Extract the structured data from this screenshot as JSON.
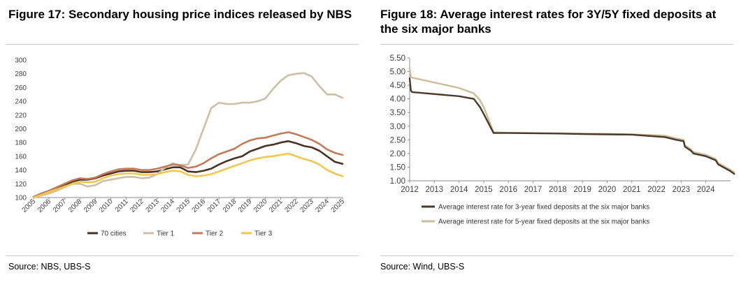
{
  "left": {
    "title": "Figure 17: Secondary housing price indices released by NBS",
    "source": "Source: NBS, UBS-S"
  },
  "right": {
    "title": "Figure 18: Average interest rates for 3Y/5Y fixed deposits at the six major banks",
    "source": "Source: Wind, UBS-S"
  },
  "colors": {
    "cities70": "#4a3222",
    "tier1": "#cdbfa5",
    "tier2": "#c47a58",
    "tier3": "#f0c84a",
    "dep3y": "#4a3a2a",
    "dep5y": "#cdbb9a",
    "axis": "#8c8c8c",
    "rule": "#c8c8c8"
  },
  "chart_data": [
    {
      "type": "line",
      "title": "Figure 17: Secondary housing price indices released by NBS",
      "xlabel": "",
      "ylabel": "",
      "xlim": [
        2005,
        2025
      ],
      "ylim": [
        100,
        300
      ],
      "yticks": [
        "100",
        "120",
        "140",
        "160",
        "180",
        "200",
        "220",
        "240",
        "260",
        "280",
        "300"
      ],
      "xticks": [
        "2005",
        "2006",
        "2007",
        "2008",
        "2009",
        "2010",
        "2011",
        "2012",
        "2013",
        "2014",
        "2015",
        "2016",
        "2017",
        "2018",
        "2019",
        "2020",
        "2021",
        "2022",
        "2023",
        "2024",
        "2025"
      ],
      "legend_position": "bottom",
      "series": [
        {
          "name": "70 cities",
          "color_key": "cities70",
          "x": [
            2005.0,
            2005.5,
            2006.0,
            2006.5,
            2007.0,
            2007.5,
            2008.0,
            2008.5,
            2009.0,
            2009.5,
            2010.0,
            2010.5,
            2011.0,
            2011.5,
            2012.0,
            2012.5,
            2013.0,
            2013.5,
            2014.0,
            2014.5,
            2015.0,
            2015.5,
            2016.0,
            2016.5,
            2017.0,
            2017.5,
            2018.0,
            2018.5,
            2019.0,
            2019.5,
            2020.0,
            2020.5,
            2021.0,
            2021.5,
            2022.0,
            2022.5,
            2023.0,
            2023.5,
            2024.0,
            2024.5,
            2025.0
          ],
          "values": [
            101,
            105,
            109,
            113,
            118,
            123,
            126,
            126,
            128,
            132,
            135,
            138,
            139,
            139,
            137,
            137,
            138,
            141,
            144,
            144,
            138,
            137,
            139,
            142,
            148,
            153,
            157,
            160,
            167,
            171,
            175,
            177,
            180,
            182,
            179,
            175,
            173,
            168,
            160,
            152,
            149
          ]
        },
        {
          "name": "Tier 1",
          "color_key": "tier1",
          "x": [
            2005.0,
            2005.5,
            2006.0,
            2006.5,
            2007.0,
            2007.5,
            2008.0,
            2008.5,
            2009.0,
            2009.5,
            2010.0,
            2010.5,
            2011.0,
            2011.5,
            2012.0,
            2012.5,
            2013.0,
            2013.5,
            2014.0,
            2014.5,
            2015.0,
            2015.5,
            2016.0,
            2016.5,
            2017.0,
            2017.5,
            2018.0,
            2018.5,
            2019.0,
            2019.5,
            2020.0,
            2020.5,
            2021.0,
            2021.5,
            2022.0,
            2022.5,
            2023.0,
            2023.5,
            2024.0,
            2024.5,
            2025.0
          ],
          "values": [
            100,
            103,
            106,
            110,
            115,
            120,
            120,
            116,
            118,
            124,
            126,
            128,
            130,
            130,
            128,
            129,
            134,
            143,
            150,
            147,
            148,
            170,
            200,
            230,
            238,
            236,
            236,
            238,
            238,
            240,
            244,
            258,
            270,
            278,
            280,
            281,
            276,
            262,
            250,
            250,
            245
          ]
        },
        {
          "name": "Tier 2",
          "color_key": "tier2",
          "x": [
            2005.0,
            2005.5,
            2006.0,
            2006.5,
            2007.0,
            2007.5,
            2008.0,
            2008.5,
            2009.0,
            2009.5,
            2010.0,
            2010.5,
            2011.0,
            2011.5,
            2012.0,
            2012.5,
            2013.0,
            2013.5,
            2014.0,
            2014.5,
            2015.0,
            2015.5,
            2016.0,
            2016.5,
            2017.0,
            2017.5,
            2018.0,
            2018.5,
            2019.0,
            2019.5,
            2020.0,
            2020.5,
            2021.0,
            2021.5,
            2022.0,
            2022.5,
            2023.0,
            2023.5,
            2024.0,
            2024.5,
            2025.0
          ],
          "values": [
            101,
            106,
            110,
            115,
            120,
            125,
            128,
            127,
            129,
            134,
            138,
            141,
            142,
            142,
            140,
            140,
            142,
            145,
            148,
            147,
            143,
            145,
            150,
            157,
            163,
            167,
            171,
            178,
            183,
            186,
            187,
            190,
            193,
            195,
            192,
            188,
            184,
            178,
            170,
            165,
            162
          ]
        },
        {
          "name": "Tier 3",
          "color_key": "tier3",
          "x": [
            2005.0,
            2005.5,
            2006.0,
            2006.5,
            2007.0,
            2007.5,
            2008.0,
            2008.5,
            2009.0,
            2009.5,
            2010.0,
            2010.5,
            2011.0,
            2011.5,
            2012.0,
            2012.5,
            2013.0,
            2013.5,
            2014.0,
            2014.5,
            2015.0,
            2015.5,
            2016.0,
            2016.5,
            2017.0,
            2017.5,
            2018.0,
            2018.5,
            2019.0,
            2019.5,
            2020.0,
            2020.5,
            2021.0,
            2021.5,
            2022.0,
            2022.5,
            2023.0,
            2023.5,
            2024.0,
            2024.5,
            2025.0
          ],
          "values": [
            100,
            104,
            108,
            112,
            116,
            120,
            123,
            122,
            123,
            128,
            132,
            134,
            135,
            135,
            133,
            133,
            134,
            137,
            139,
            138,
            133,
            131,
            132,
            134,
            138,
            142,
            146,
            150,
            154,
            157,
            159,
            160,
            162,
            164,
            160,
            156,
            153,
            148,
            140,
            135,
            131
          ]
        }
      ]
    },
    {
      "type": "line",
      "title": "Figure 18: Average interest rates for 3Y/5Y fixed deposits at the six major banks",
      "xlabel": "",
      "ylabel": "",
      "xlim": [
        2012,
        2025
      ],
      "ylim": [
        1.0,
        5.5
      ],
      "yticks": [
        "1.00",
        "1.50",
        "2.00",
        "2.50",
        "3.00",
        "3.50",
        "4.00",
        "4.50",
        "5.00",
        "5.50"
      ],
      "xticks": [
        "2012",
        "2013",
        "2014",
        "2015",
        "2016",
        "2017",
        "2018",
        "2019",
        "2020",
        "2021",
        "2022",
        "2023",
        "2024"
      ],
      "legend_position": "bottom",
      "series": [
        {
          "name": "Average interest rate for 3-year fixed deposits at the six major banks",
          "color_key": "dep3y",
          "x": [
            2012.0,
            2012.05,
            2012.1,
            2014.0,
            2014.6,
            2014.85,
            2015.0,
            2015.4,
            2016.0,
            2017.0,
            2018.0,
            2019.0,
            2020.0,
            2021.0,
            2022.0,
            2022.35,
            2022.8,
            2023.1,
            2023.15,
            2023.4,
            2023.5,
            2024.0,
            2024.4,
            2024.5,
            2024.7,
            2025.0,
            2025.15
          ],
          "values": [
            4.75,
            4.3,
            4.25,
            4.1,
            4.0,
            3.7,
            3.45,
            2.75,
            2.75,
            2.74,
            2.73,
            2.71,
            2.7,
            2.69,
            2.62,
            2.6,
            2.5,
            2.45,
            2.25,
            2.1,
            2.0,
            1.9,
            1.75,
            1.6,
            1.5,
            1.35,
            1.25
          ]
        },
        {
          "name": "Average interest rate for 5-year fixed deposits at the six major banks",
          "color_key": "dep5y",
          "x": [
            2012.0,
            2012.05,
            2012.1,
            2014.0,
            2014.6,
            2014.85,
            2015.0,
            2015.4,
            2016.0,
            2017.0,
            2018.0,
            2019.0,
            2020.0,
            2021.0,
            2022.0,
            2022.35,
            2022.8,
            2023.1,
            2023.15,
            2023.4,
            2023.5,
            2024.0,
            2024.4,
            2024.5,
            2024.7,
            2025.0,
            2025.15
          ],
          "values": [
            5.1,
            4.8,
            4.78,
            4.4,
            4.2,
            3.95,
            3.7,
            2.78,
            2.76,
            2.75,
            2.74,
            2.73,
            2.72,
            2.7,
            2.67,
            2.65,
            2.55,
            2.5,
            2.3,
            2.15,
            2.05,
            1.95,
            1.8,
            1.65,
            1.55,
            1.4,
            1.3
          ]
        }
      ]
    }
  ]
}
